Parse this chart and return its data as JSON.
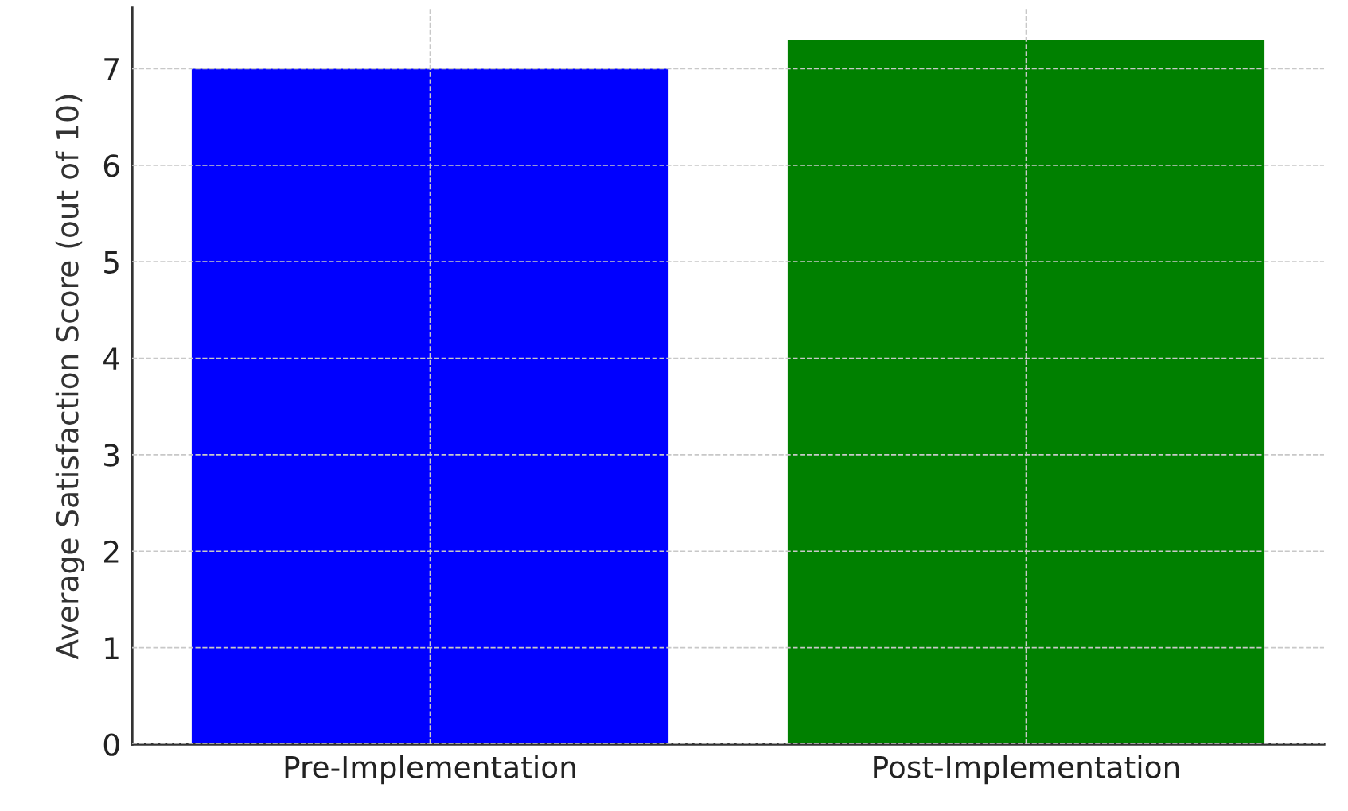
{
  "chart_data": {
    "type": "bar",
    "categories": [
      "Pre-Implementation",
      "Post-Implementation"
    ],
    "values": [
      7.0,
      7.3
    ],
    "colors": [
      "#0000ff",
      "#008000"
    ],
    "ylabel": "Average Satisfaction Score (out of 10)",
    "ylim": [
      0,
      7.63
    ],
    "yticks": [
      0,
      1,
      2,
      3,
      4,
      5,
      6,
      7
    ],
    "grid": true
  }
}
